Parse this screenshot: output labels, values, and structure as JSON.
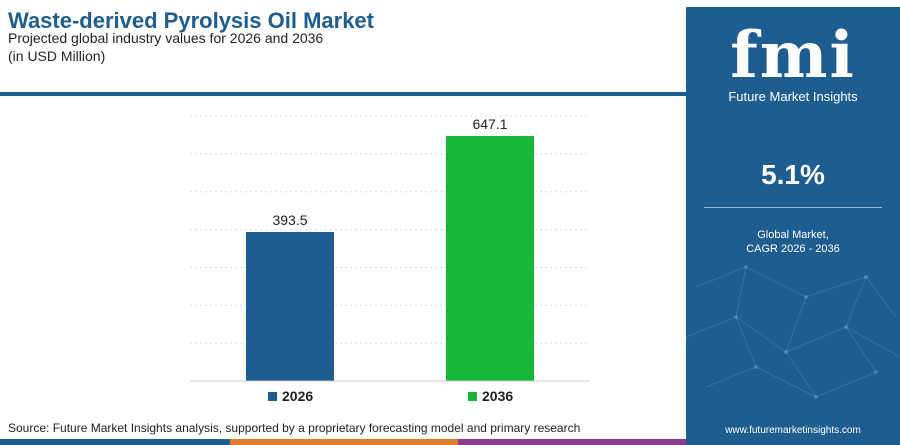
{
  "header": {
    "title": "Waste-derived Pyrolysis Oil Market",
    "subtitle_line1": "Projected global industry values for 2026 and 2036",
    "subtitle_line2": "(in USD Million)"
  },
  "chart_data": {
    "type": "bar",
    "categories": [
      "2026",
      "2036"
    ],
    "values": [
      393.5,
      647.1
    ],
    "value_labels": [
      "393.5",
      "647.1"
    ],
    "colors": [
      "#1d5d90",
      "#17b53a"
    ],
    "ylim": [
      0,
      700
    ],
    "grid": true,
    "legend": {
      "placement": "bottom",
      "entries": [
        {
          "label": "2026",
          "color": "#1d5d90"
        },
        {
          "label": "2036",
          "color": "#17b53a"
        }
      ]
    }
  },
  "source": "Source: Future Market Insights analysis, supported by a proprietary forecasting model and primary research",
  "panel": {
    "logo_mark": "fmi",
    "logo_text": "Future Market Insights",
    "cagr_value": "5.1%",
    "cagr_label_line1": "Global Market,",
    "cagr_label_line2": "CAGR 2026 - 2036",
    "website": "www.futuremarketinsights.com",
    "color": "#1d5d90"
  },
  "bottom_strip_colors": [
    "#1d5d90",
    "#e07a2c",
    "#8b3d8e"
  ]
}
